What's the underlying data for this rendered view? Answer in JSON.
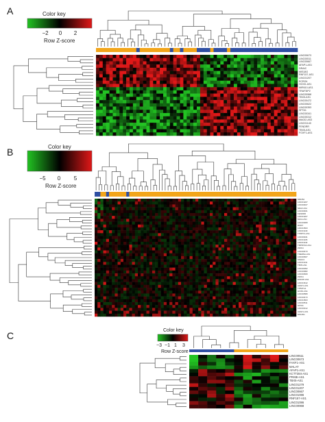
{
  "colors": {
    "low": "#22c322",
    "mid": "#000000",
    "high": "#e01818",
    "group_orange": "#f2a51a",
    "group_blue": "#2f4fa3",
    "dendrogram": "#333333"
  },
  "panels": [
    {
      "label": "A",
      "color_key": {
        "title": "Color key",
        "xlabel": "Row Z-score",
        "ticks": [
          "−2",
          "0",
          "2"
        ],
        "range": [
          -3,
          3
        ]
      },
      "rows": [
        "LINC00673",
        "LINC00511",
        "LINC00667",
        "AFAP1-AS1",
        "DRAIC",
        "MIS18G",
        "RNF157-AS1",
        "LINC01207",
        "ECRG4",
        "HOXD-AS1",
        "MIR610-AS1",
        "TRAF3IP2",
        "LINC00968",
        "TBX5-AS1",
        "LINC00472",
        "LINC00622",
        "LINC00353",
        "SFTA1",
        "LINC00341",
        "LINC00312",
        "MAGI2-AS3",
        "LINC01140",
        "FENDRR",
        "TBX5-AS1",
        "FOXF1-AS1"
      ],
      "column_groups": "mostly orange on the left, blue on the right"
    },
    {
      "label": "B",
      "color_key": {
        "title": "Color key",
        "xlabel": "Row Z-score",
        "ticks": [
          "−5",
          "0",
          "5"
        ],
        "range": [
          -8,
          8
        ]
      },
      "rows": [
        "MIR452",
        "LINC01207",
        "LINC00467",
        "NRAV-AS1",
        "LINC00461",
        "FENDRR",
        "LINC01207",
        "MAGI-AS1",
        "LINC00968",
        "RMST",
        "LINC01503",
        "LINC01140",
        "TPRP7A-AS1",
        "LINC00341",
        "LINC01106",
        "LINC01132",
        "TMPRSS4-AS1",
        "ZFAS1",
        "LINC00473",
        "TRERNA-AS1",
        "LINC00667",
        "SNHG3",
        "LINC01011",
        "TBX5-AS1",
        "LINC00052",
        "LINC00982",
        "LINC00669",
        "ZFAS1",
        "ESKOP-AS1",
        "LINC01612",
        "AFAP1-AS1",
        "TP53TG1",
        "HOXD-AS1",
        "LINC00589",
        "LINC00473",
        "LINC01503",
        "LINC00511",
        "SFTA1",
        "LINC00312",
        "AFAP1-AS1",
        "MIS18G"
      ],
      "column_groups": "orange with a few blue columns at the left"
    },
    {
      "label": "C",
      "color_key": {
        "title": "Color key",
        "xlabel": "Row Z-score",
        "ticks": [
          "−3",
          "−1",
          "1",
          "3"
        ],
        "range": [
          -3,
          3
        ]
      },
      "rows": [
        "LINC00511",
        "LINC00673",
        "FAXF1-AS1",
        "MALAT",
        "AFAP1-AS1",
        "KCTT384-AS1",
        "PRKBI-AS1",
        "TBX5-AS1",
        "LINC01279",
        "LINC01207",
        "LINC00667",
        "LINC01086",
        "RNF157-AS1",
        "LINC01086",
        "LINC00968"
      ],
      "column_groups": "blue for the first 5 columns, orange for the remaining 6"
    }
  ]
}
